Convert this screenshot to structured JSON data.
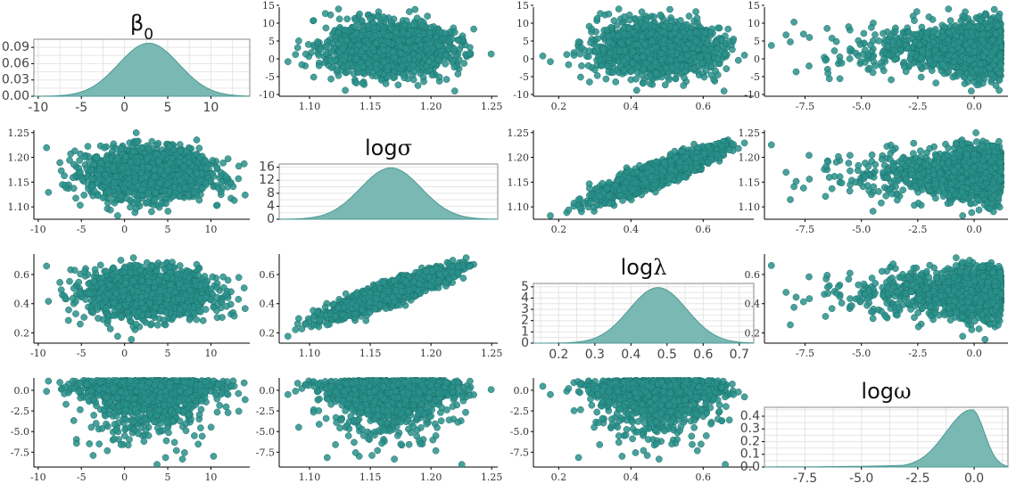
{
  "chart_data": {
    "type": "scatter",
    "layout": "pairs-matrix",
    "variables": [
      {
        "key": "beta0",
        "title": "β",
        "title_subscript": "0",
        "range": [
          -10.5,
          14.5
        ],
        "ticks": [
          -10,
          -5,
          0,
          5,
          10
        ],
        "tick_labels": [
          "-10",
          "-5",
          "0",
          "5",
          "10"
        ],
        "density_ticks": [
          0.0,
          0.03,
          0.06,
          0.09
        ],
        "density_tick_labels": [
          "0.00",
          "0.03",
          "0.06",
          "0.09"
        ],
        "density_ymax": 0.105,
        "mean": 2.8,
        "sd": 3.5,
        "skew": 0
      },
      {
        "key": "logsigma",
        "title": "log",
        "title_greek": "σ",
        "range": [
          1.075,
          1.255
        ],
        "ticks": [
          1.1,
          1.15,
          1.2,
          1.25
        ],
        "tick_labels": [
          "1.10",
          "1.15",
          "1.20",
          "1.25"
        ],
        "density_ticks": [
          0,
          4,
          8,
          12,
          16
        ],
        "density_tick_labels": [
          "0",
          "4",
          "8",
          "12",
          "16"
        ],
        "density_ymax": 17,
        "mean": 1.167,
        "sd": 0.025,
        "skew": 0
      },
      {
        "key": "loglambda",
        "title": "log",
        "title_greek": "λ",
        "range": [
          0.13,
          0.74
        ],
        "ticks": [
          0.2,
          0.4,
          0.6
        ],
        "tick_labels": [
          "0.2",
          "0.4",
          "0.6"
        ],
        "density_ticks": [
          0.2,
          0.3,
          0.4,
          0.5,
          0.6,
          0.7
        ],
        "density_tick_labels": [
          "0.2",
          "0.3",
          "0.4",
          "0.5",
          "0.6",
          "0.7"
        ],
        "density_yticks": [
          0,
          1,
          2,
          3,
          4,
          5
        ],
        "density_ytick_labels": [
          "0",
          "1",
          "2",
          "3",
          "4",
          "5"
        ],
        "density_ymax": 5.3,
        "mean": 0.475,
        "sd": 0.08,
        "skew": 0
      },
      {
        "key": "logomega",
        "title": "log",
        "title_greek": "ω",
        "range": [
          -9.3,
          1.5
        ],
        "ticks": [
          -7.5,
          -5.0,
          -2.5,
          0.0
        ],
        "tick_labels": [
          "-7.5",
          "-5.0",
          "-2.5",
          "0.0"
        ],
        "density_ticks": [
          0.0,
          0.1,
          0.2,
          0.3,
          0.4
        ],
        "density_tick_labels": [
          "0.0",
          "0.1",
          "0.2",
          "0.3",
          "0.4"
        ],
        "density_ymax": 0.47,
        "mean": -0.1,
        "sd": 0.9,
        "skew": 1
      }
    ],
    "correlation": {
      "logsigma-loglambda": 0.9,
      "beta0-logsigma": 0.05,
      "beta0-loglambda": 0.05,
      "beta0-logomega": -0.05,
      "logsigma-logomega": 0.0,
      "loglambda-logomega": 0.0
    },
    "point_color": "#2a918b",
    "point_edge": "#1a6f6a",
    "density_fill": "#7ab8b4",
    "density_line": "#4e9994",
    "n_points": 1800
  }
}
